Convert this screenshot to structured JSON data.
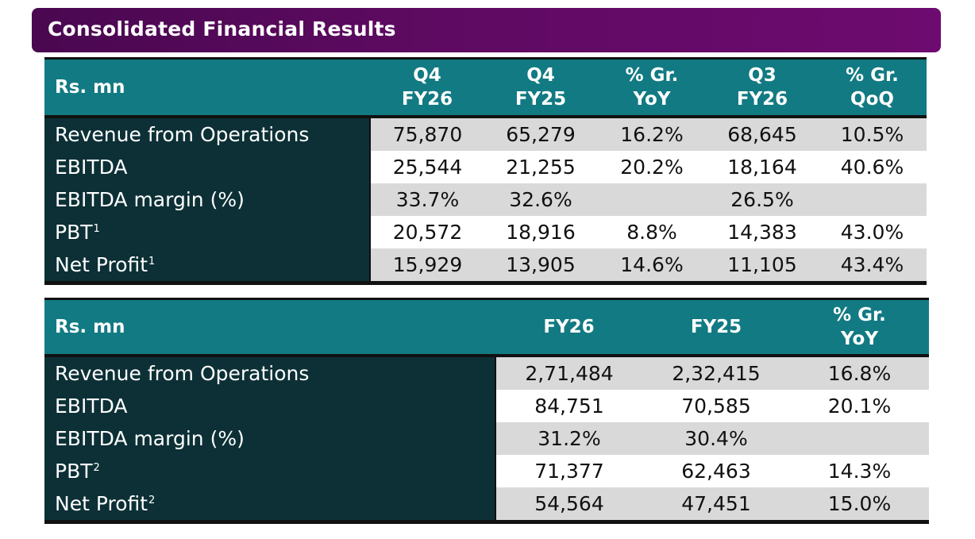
{
  "title": "Consolidated Financial Results",
  "quarterly": {
    "corner": "Rs. mn",
    "columns": [
      {
        "line1": "Q4",
        "line2": "FY26"
      },
      {
        "line1": "Q4",
        "line2": "FY25"
      },
      {
        "line1": "% Gr.",
        "line2": "YoY"
      },
      {
        "line1": "Q3",
        "line2": "FY26"
      },
      {
        "line1": "% Gr.",
        "line2": "QoQ"
      }
    ],
    "rows": [
      {
        "label": "Revenue from Operations",
        "footnote": "",
        "values": [
          "75,870",
          "65,279",
          "16.2%",
          "68,645",
          "10.5%"
        ]
      },
      {
        "label": "EBITDA",
        "footnote": "",
        "values": [
          "25,544",
          "21,255",
          "20.2%",
          "18,164",
          "40.6%"
        ]
      },
      {
        "label": "EBITDA margin (%)",
        "footnote": "",
        "values": [
          "33.7%",
          "32.6%",
          "",
          "26.5%",
          ""
        ]
      },
      {
        "label": "PBT",
        "footnote": "1",
        "values": [
          "20,572",
          "18,916",
          "8.8%",
          "14,383",
          "43.0%"
        ]
      },
      {
        "label": "Net Profit",
        "footnote": "1",
        "values": [
          "15,929",
          "13,905",
          "14.6%",
          "11,105",
          "43.4%"
        ]
      }
    ]
  },
  "annual": {
    "corner": "Rs. mn",
    "columns": [
      {
        "line1": "FY26",
        "line2": ""
      },
      {
        "line1": "FY25",
        "line2": ""
      },
      {
        "line1": "% Gr.",
        "line2": "YoY"
      }
    ],
    "rows": [
      {
        "label": "Revenue from Operations",
        "footnote": "",
        "values": [
          "2,71,484",
          "2,32,415",
          "16.8%"
        ]
      },
      {
        "label": "EBITDA",
        "footnote": "",
        "values": [
          "84,751",
          "70,585",
          "20.1%"
        ]
      },
      {
        "label": "EBITDA margin (%)",
        "footnote": "",
        "values": [
          "31.2%",
          "30.4%",
          ""
        ]
      },
      {
        "label": "PBT",
        "footnote": "2",
        "values": [
          "71,377",
          "62,463",
          "14.3%"
        ]
      },
      {
        "label": "Net Profit",
        "footnote": "2",
        "values": [
          "54,564",
          "47,451",
          "15.0%"
        ]
      }
    ]
  },
  "colors": {
    "title_bar": "#5e0a62",
    "header_teal": "#127a82",
    "label_dark": "#0c3036",
    "row_shade": "#d9d9d9"
  }
}
